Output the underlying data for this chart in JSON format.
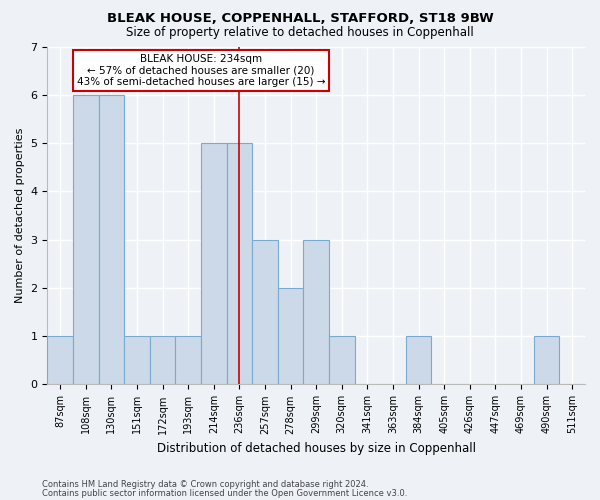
{
  "title1": "BLEAK HOUSE, COPPENHALL, STAFFORD, ST18 9BW",
  "title2": "Size of property relative to detached houses in Coppenhall",
  "xlabel": "Distribution of detached houses by size in Coppenhall",
  "ylabel": "Number of detached properties",
  "categories": [
    "87sqm",
    "108sqm",
    "130sqm",
    "151sqm",
    "172sqm",
    "193sqm",
    "214sqm",
    "236sqm",
    "257sqm",
    "278sqm",
    "299sqm",
    "320sqm",
    "341sqm",
    "363sqm",
    "384sqm",
    "405sqm",
    "426sqm",
    "447sqm",
    "469sqm",
    "490sqm",
    "511sqm"
  ],
  "values": [
    1,
    6,
    6,
    1,
    1,
    1,
    5,
    5,
    3,
    2,
    3,
    1,
    0,
    0,
    1,
    0,
    0,
    0,
    0,
    1,
    0
  ],
  "bar_color": "#ccd9e8",
  "bar_edge_color": "#7aaad0",
  "ref_line_index": 7,
  "ref_line_color": "#cc0000",
  "ylim": [
    0,
    7
  ],
  "yticks": [
    0,
    1,
    2,
    3,
    4,
    5,
    6,
    7
  ],
  "annotation_title": "BLEAK HOUSE: 234sqm",
  "annotation_line1": "← 57% of detached houses are smaller (20)",
  "annotation_line2": "43% of semi-detached houses are larger (15) →",
  "annotation_box_color": "#ffffff",
  "annotation_border_color": "#cc0000",
  "footnote1": "Contains HM Land Registry data © Crown copyright and database right 2024.",
  "footnote2": "Contains public sector information licensed under the Open Government Licence v3.0.",
  "background_color": "#eef2f7",
  "grid_color": "#ffffff",
  "spine_color": "#bbbbbb",
  "title_fontsize": 9.5,
  "subtitle_fontsize": 8.5,
  "tick_fontsize": 7,
  "ylabel_fontsize": 8,
  "xlabel_fontsize": 8.5,
  "footnote_fontsize": 6,
  "annot_fontsize": 7.5
}
